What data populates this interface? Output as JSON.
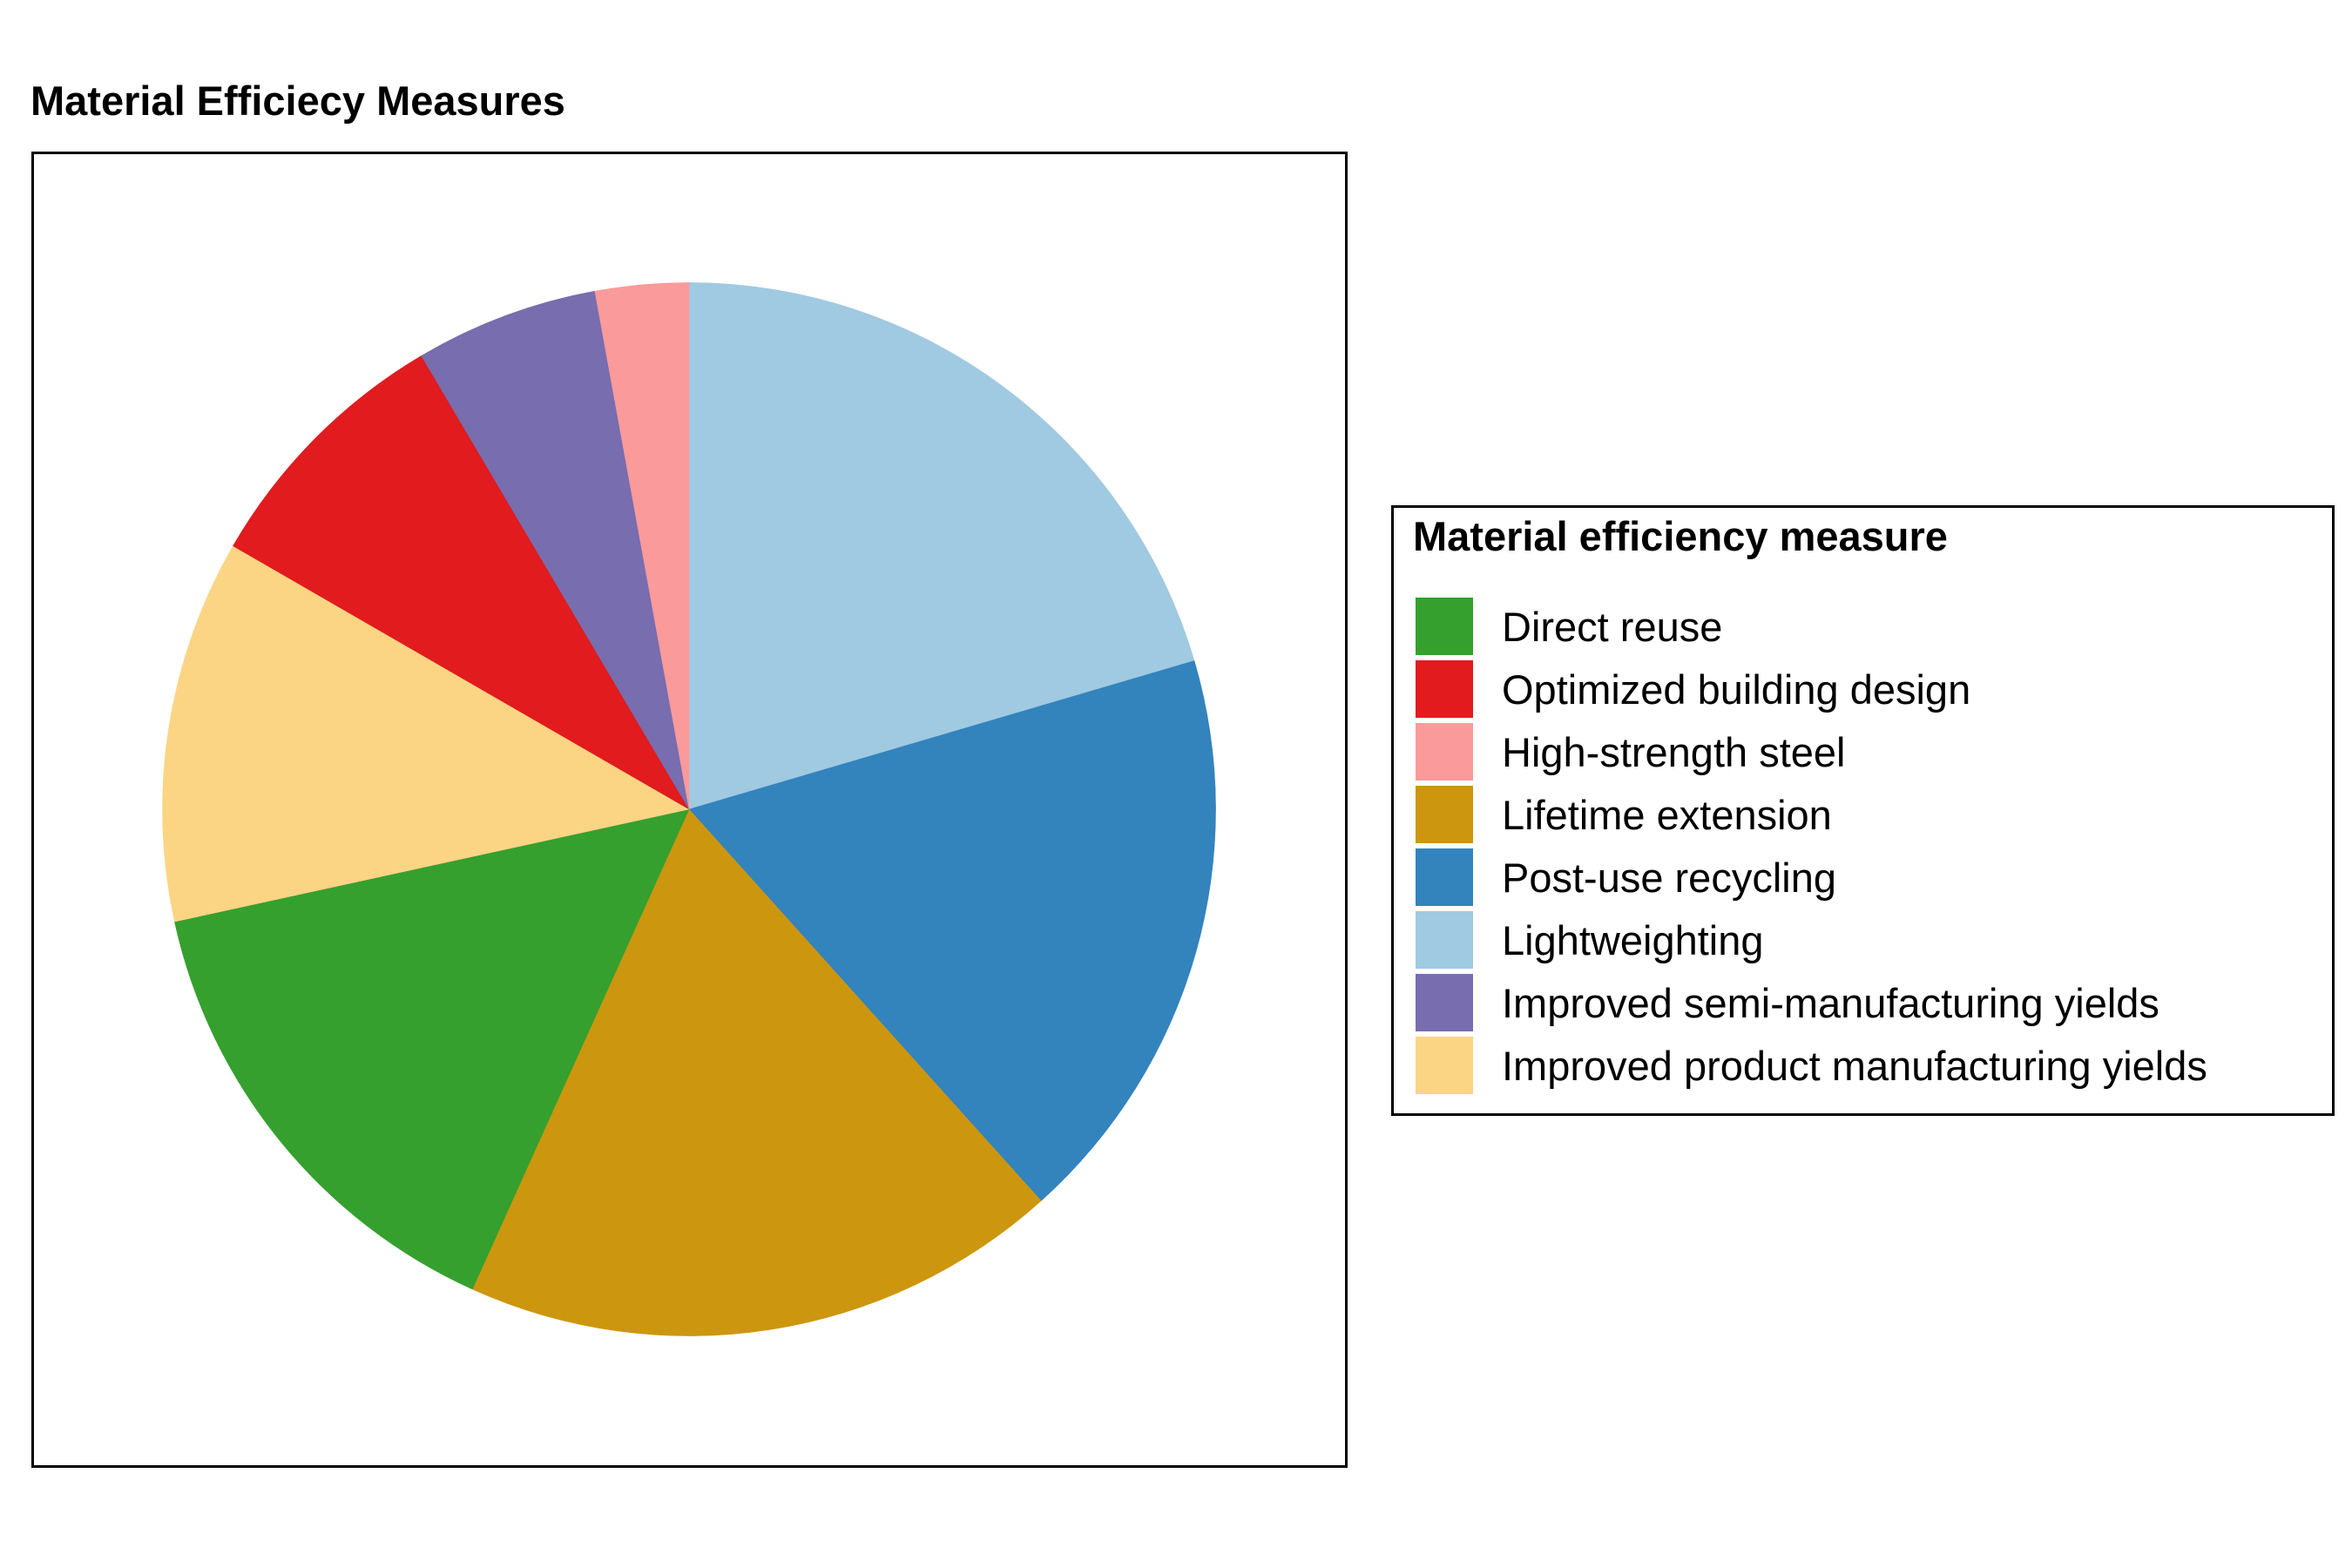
{
  "chart_data": {
    "type": "pie",
    "title": "Material Efficiecy Measures",
    "legend_title": "Material efficiency measure",
    "legend_position": "right",
    "start": "12 o'clock",
    "direction": "clockwise",
    "slices": [
      {
        "label": "Lightweighting",
        "value": 20.0,
        "color": "#a0cae1"
      },
      {
        "label": "Post-use recycling",
        "value": 17.5,
        "color": "#3383bd"
      },
      {
        "label": "Lifetime extension",
        "value": 18.0,
        "color": "#cc960f"
      },
      {
        "label": "Direct reuse",
        "value": 14.5,
        "color": "#35a02e"
      },
      {
        "label": "Improved product manufacturing yields",
        "value": 11.5,
        "color": "#fbd584"
      },
      {
        "label": "Optimized building design",
        "value": 8.0,
        "color": "#e11b1e"
      },
      {
        "label": "Improved semi-manufacturing yields",
        "value": 5.5,
        "color": "#776daf"
      },
      {
        "label": "High-strength steel",
        "value": 2.8,
        "color": "#fb9a9a"
      }
    ],
    "legend_order": [
      "Direct reuse",
      "Optimized building design",
      "High-strength steel",
      "Lifetime extension",
      "Post-use recycling",
      "Lightweighting",
      "Improved semi-manufacturing yields",
      "Improved product manufacturing yields"
    ]
  }
}
